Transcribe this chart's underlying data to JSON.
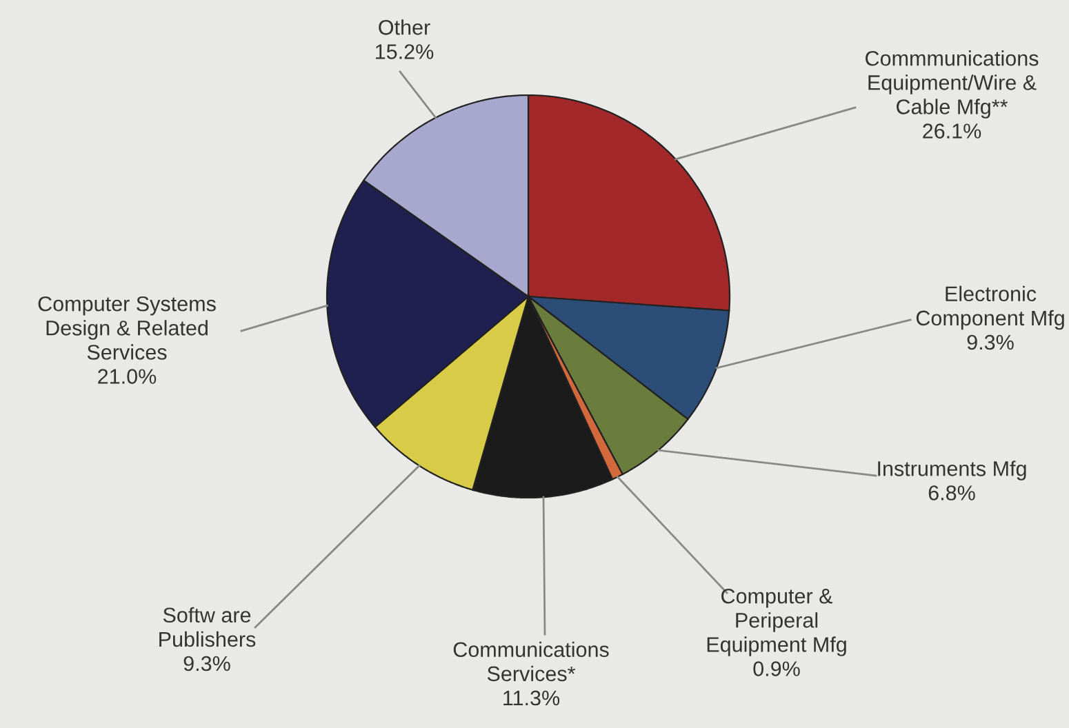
{
  "chart_data": {
    "type": "pie",
    "categories": [
      "Commmunications\nEquipment/Wire &\nCable Mfg**",
      "Electronic\nComponent Mfg",
      "Instruments Mfg",
      "Computer &\nPeriperal\nEquipment Mfg",
      "Communications\nServices*",
      "Softw are\nPublishers",
      "Computer Systems\nDesign & Related\nServices",
      "Other"
    ],
    "values": [
      26.1,
      9.3,
      6.8,
      0.9,
      11.3,
      9.3,
      21.0,
      15.2
    ],
    "colors": [
      "#a3282a",
      "#2b4d78",
      "#6a7d3c",
      "#d2693c",
      "#1b1b1b",
      "#d8cb48",
      "#1f204f",
      "#a8a7cd"
    ],
    "value_labels": [
      "26.1%",
      "9.3%",
      "6.8%",
      "0.9%",
      "11.3%",
      "9.3%",
      "21.0%",
      "15.2%"
    ]
  }
}
